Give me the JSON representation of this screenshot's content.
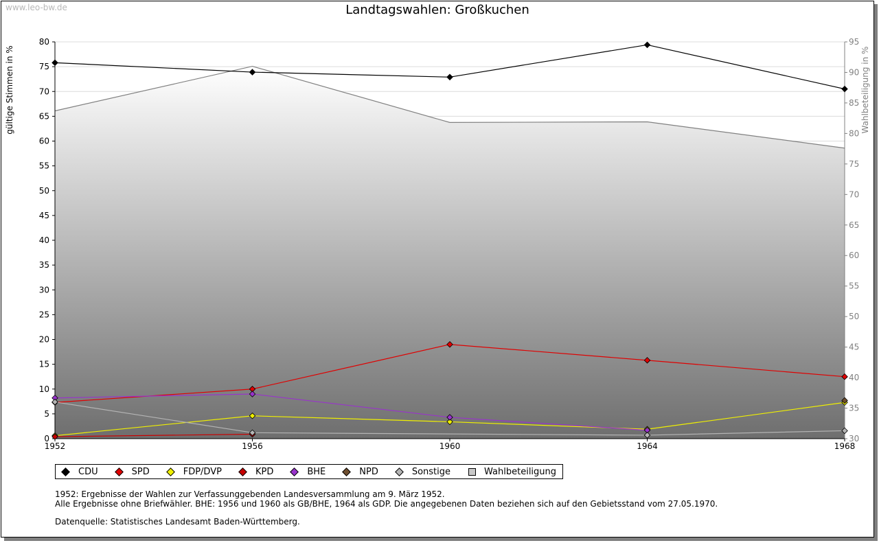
{
  "watermark": "www.leo-bw.de",
  "chart_data": {
    "type": "line",
    "title": "Landtagswahlen: Großkuchen",
    "ylabel": "gültige Stimmen in %",
    "ylabel_right": "Wahlbeteiligung in %",
    "x": [
      1952,
      1956,
      1960,
      1964,
      1968
    ],
    "x_ticks": [
      "1952",
      "1956",
      "1960",
      "1964",
      "1968"
    ],
    "ylim": [
      0,
      80
    ],
    "y_ticks": [
      "0",
      "5",
      "10",
      "15",
      "20",
      "25",
      "30",
      "35",
      "40",
      "45",
      "50",
      "55",
      "60",
      "65",
      "70",
      "75",
      "80"
    ],
    "ylim_right": [
      30,
      95
    ],
    "y_ticks_right": [
      "30",
      "35",
      "40",
      "45",
      "50",
      "55",
      "60",
      "65",
      "70",
      "75",
      "80",
      "85",
      "90",
      "95"
    ],
    "grid": true,
    "legend_position": "bottom-left",
    "series": [
      {
        "name": "CDU",
        "color": "#000000",
        "values": [
          75.8,
          73.9,
          72.9,
          79.4,
          70.5
        ]
      },
      {
        "name": "SPD",
        "color": "#e00000",
        "values": [
          7.3,
          10.0,
          19.0,
          15.8,
          12.5
        ]
      },
      {
        "name": "FDP/DVP",
        "color": "#f0f000",
        "values": [
          0.6,
          4.6,
          3.4,
          1.9,
          7.3
        ]
      },
      {
        "name": "KPD",
        "color": "#c80000",
        "values": [
          0.4,
          0.9,
          null,
          null,
          null
        ]
      },
      {
        "name": "BHE",
        "color": "#9933cc",
        "values": [
          8.2,
          9.0,
          4.3,
          1.7,
          null
        ]
      },
      {
        "name": "NPD",
        "color": "#6e4e2e",
        "values": [
          null,
          null,
          null,
          null,
          7.7
        ]
      },
      {
        "name": "Sonstige",
        "color": "#b4b4b4",
        "values": [
          7.4,
          1.2,
          null,
          0.7,
          1.6
        ]
      }
    ],
    "turnout": {
      "name": "Wahlbeteiligung",
      "color": "#808080",
      "values": [
        83.7,
        91.0,
        81.8,
        81.9,
        77.6
      ]
    }
  },
  "notes": [
    "1952: Ergebnisse der Wahlen zur Verfassunggebenden Landesversammlung am 9. März 1952.",
    "Alle Ergebnisse ohne Briefwähler. BHE: 1956 und 1960 als GB/BHE, 1964 als GDP. Die angegebenen Daten beziehen sich auf den Gebietsstand vom 27.05.1970."
  ],
  "source": "Datenquelle: Statistisches Landesamt Baden-Württemberg."
}
